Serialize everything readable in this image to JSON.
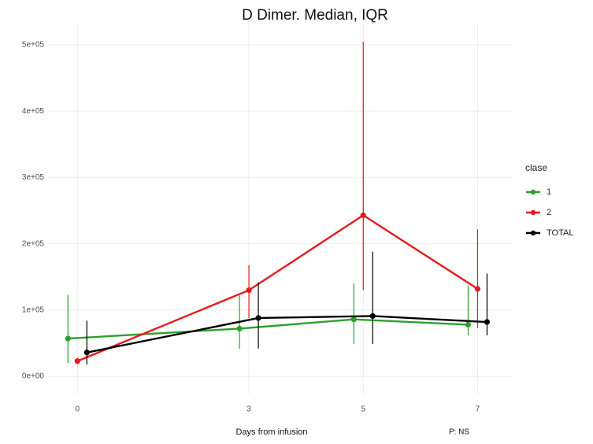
{
  "chart_data": {
    "type": "line",
    "title": "D Dimer. Median, IQR",
    "x_label": "Days from infusion",
    "annotation": "P: NS",
    "legend_title": "clase",
    "legend": "right",
    "grid": true,
    "x": [
      0,
      3,
      5,
      7
    ],
    "xlim": [
      -0.5,
      7.6
    ],
    "xticks": [
      0,
      3,
      5,
      7
    ],
    "ylim": [
      -26000,
      532000
    ],
    "yticks": [
      {
        "value": 0,
        "label": "0e+00"
      },
      {
        "value": 100000,
        "label": "1e+05"
      },
      {
        "value": 200000,
        "label": "2e+05"
      },
      {
        "value": 300000,
        "label": "3e+05"
      },
      {
        "value": 400000,
        "label": "4e+05"
      },
      {
        "value": 500000,
        "label": "5e+05"
      }
    ],
    "series": [
      {
        "name": "1",
        "color": "#2ca02c",
        "values": [
          57000,
          72000,
          86000,
          78000
        ],
        "q1": [
          20000,
          42000,
          49000,
          62000
        ],
        "q3": [
          123000,
          122000,
          140000,
          137000
        ]
      },
      {
        "name": "2",
        "color": "#e8191c",
        "values": [
          23000,
          130000,
          243000,
          132000
        ],
        "q1": [
          20000,
          88000,
          130000,
          73000
        ],
        "q3": [
          28000,
          168000,
          505000,
          222000
        ]
      },
      {
        "name": "TOTAL",
        "color": "#000000",
        "values": [
          36000,
          88000,
          91000,
          82000
        ],
        "q1": [
          18000,
          42000,
          49000,
          62000
        ],
        "q3": [
          84000,
          142000,
          188000,
          155000
        ]
      }
    ]
  }
}
